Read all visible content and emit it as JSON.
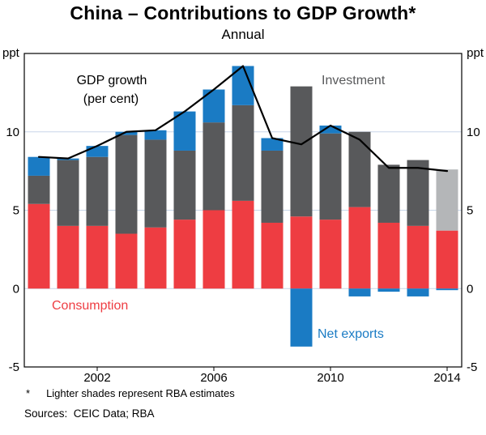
{
  "title": "China – Contributions to GDP Growth*",
  "subtitle": "Annual",
  "axis": {
    "unit_left": "ppt",
    "unit_right": "ppt",
    "ymin": -5,
    "ymax": 15,
    "yticks": [
      10,
      5,
      0,
      -5
    ],
    "xtick_labels": [
      "2002",
      "2006",
      "2010",
      "2014"
    ]
  },
  "labels": {
    "gdp_growth_line1": "GDP growth",
    "gdp_growth_line2": "(per cent)",
    "investment": "Investment",
    "consumption": "Consumption",
    "net_exports": "Net exports"
  },
  "footnote_marker": "*",
  "footnote_text": "Lighter shades represent RBA estimates",
  "sources": "Sources:  CEIC Data; RBA",
  "colors": {
    "consumption": "#ee3d42",
    "investment": "#58595b",
    "net_exports": "#1a7bc4",
    "investment_estimate": "#b4b6b8",
    "gdp_line": "#000000",
    "gridline": "#c8d6e8",
    "frame": "#000000"
  },
  "chart_data": {
    "type": "bar",
    "subtype": "stacked_bars_with_line",
    "title": "China – Contributions to GDP Growth (ppt)",
    "x": [
      2000,
      2001,
      2002,
      2003,
      2004,
      2005,
      2006,
      2007,
      2008,
      2009,
      2010,
      2011,
      2012,
      2013,
      2014
    ],
    "xtick_labels": [
      "2002",
      "2006",
      "2010",
      "2014"
    ],
    "ylim": [
      -5,
      15
    ],
    "yticks": [
      10,
      5,
      0,
      -5
    ],
    "ylabel": "ppt",
    "grid": true,
    "estimate_years": [
      2014
    ],
    "estimate_note": "Lighter shades represent RBA estimates",
    "series": [
      {
        "name": "Consumption",
        "kind": "bar",
        "color": "#ee3d42",
        "values": [
          5.4,
          4.0,
          4.0,
          3.5,
          3.9,
          4.4,
          5.0,
          5.6,
          4.2,
          4.6,
          4.4,
          5.2,
          4.2,
          4.0,
          3.7
        ]
      },
      {
        "name": "Investment",
        "kind": "bar",
        "color": "#58595b",
        "estimate_color": "#b4b6b8",
        "values": [
          1.8,
          4.2,
          4.4,
          6.3,
          5.6,
          4.4,
          5.6,
          6.1,
          4.6,
          8.3,
          5.5,
          4.8,
          3.7,
          4.2,
          3.9
        ]
      },
      {
        "name": "Net exports",
        "kind": "bar",
        "color": "#1a7bc4",
        "values": [
          1.2,
          0.1,
          0.7,
          0.2,
          0.6,
          2.5,
          2.1,
          2.5,
          0.8,
          -3.7,
          0.5,
          -0.5,
          -0.2,
          -0.5,
          -0.1
        ]
      },
      {
        "name": "GDP growth (per cent)",
        "kind": "line",
        "color": "#000000",
        "values": [
          8.4,
          8.3,
          9.1,
          10.0,
          10.1,
          11.3,
          12.7,
          14.2,
          9.6,
          9.2,
          10.4,
          9.5,
          7.7,
          7.7,
          7.5
        ]
      }
    ]
  }
}
